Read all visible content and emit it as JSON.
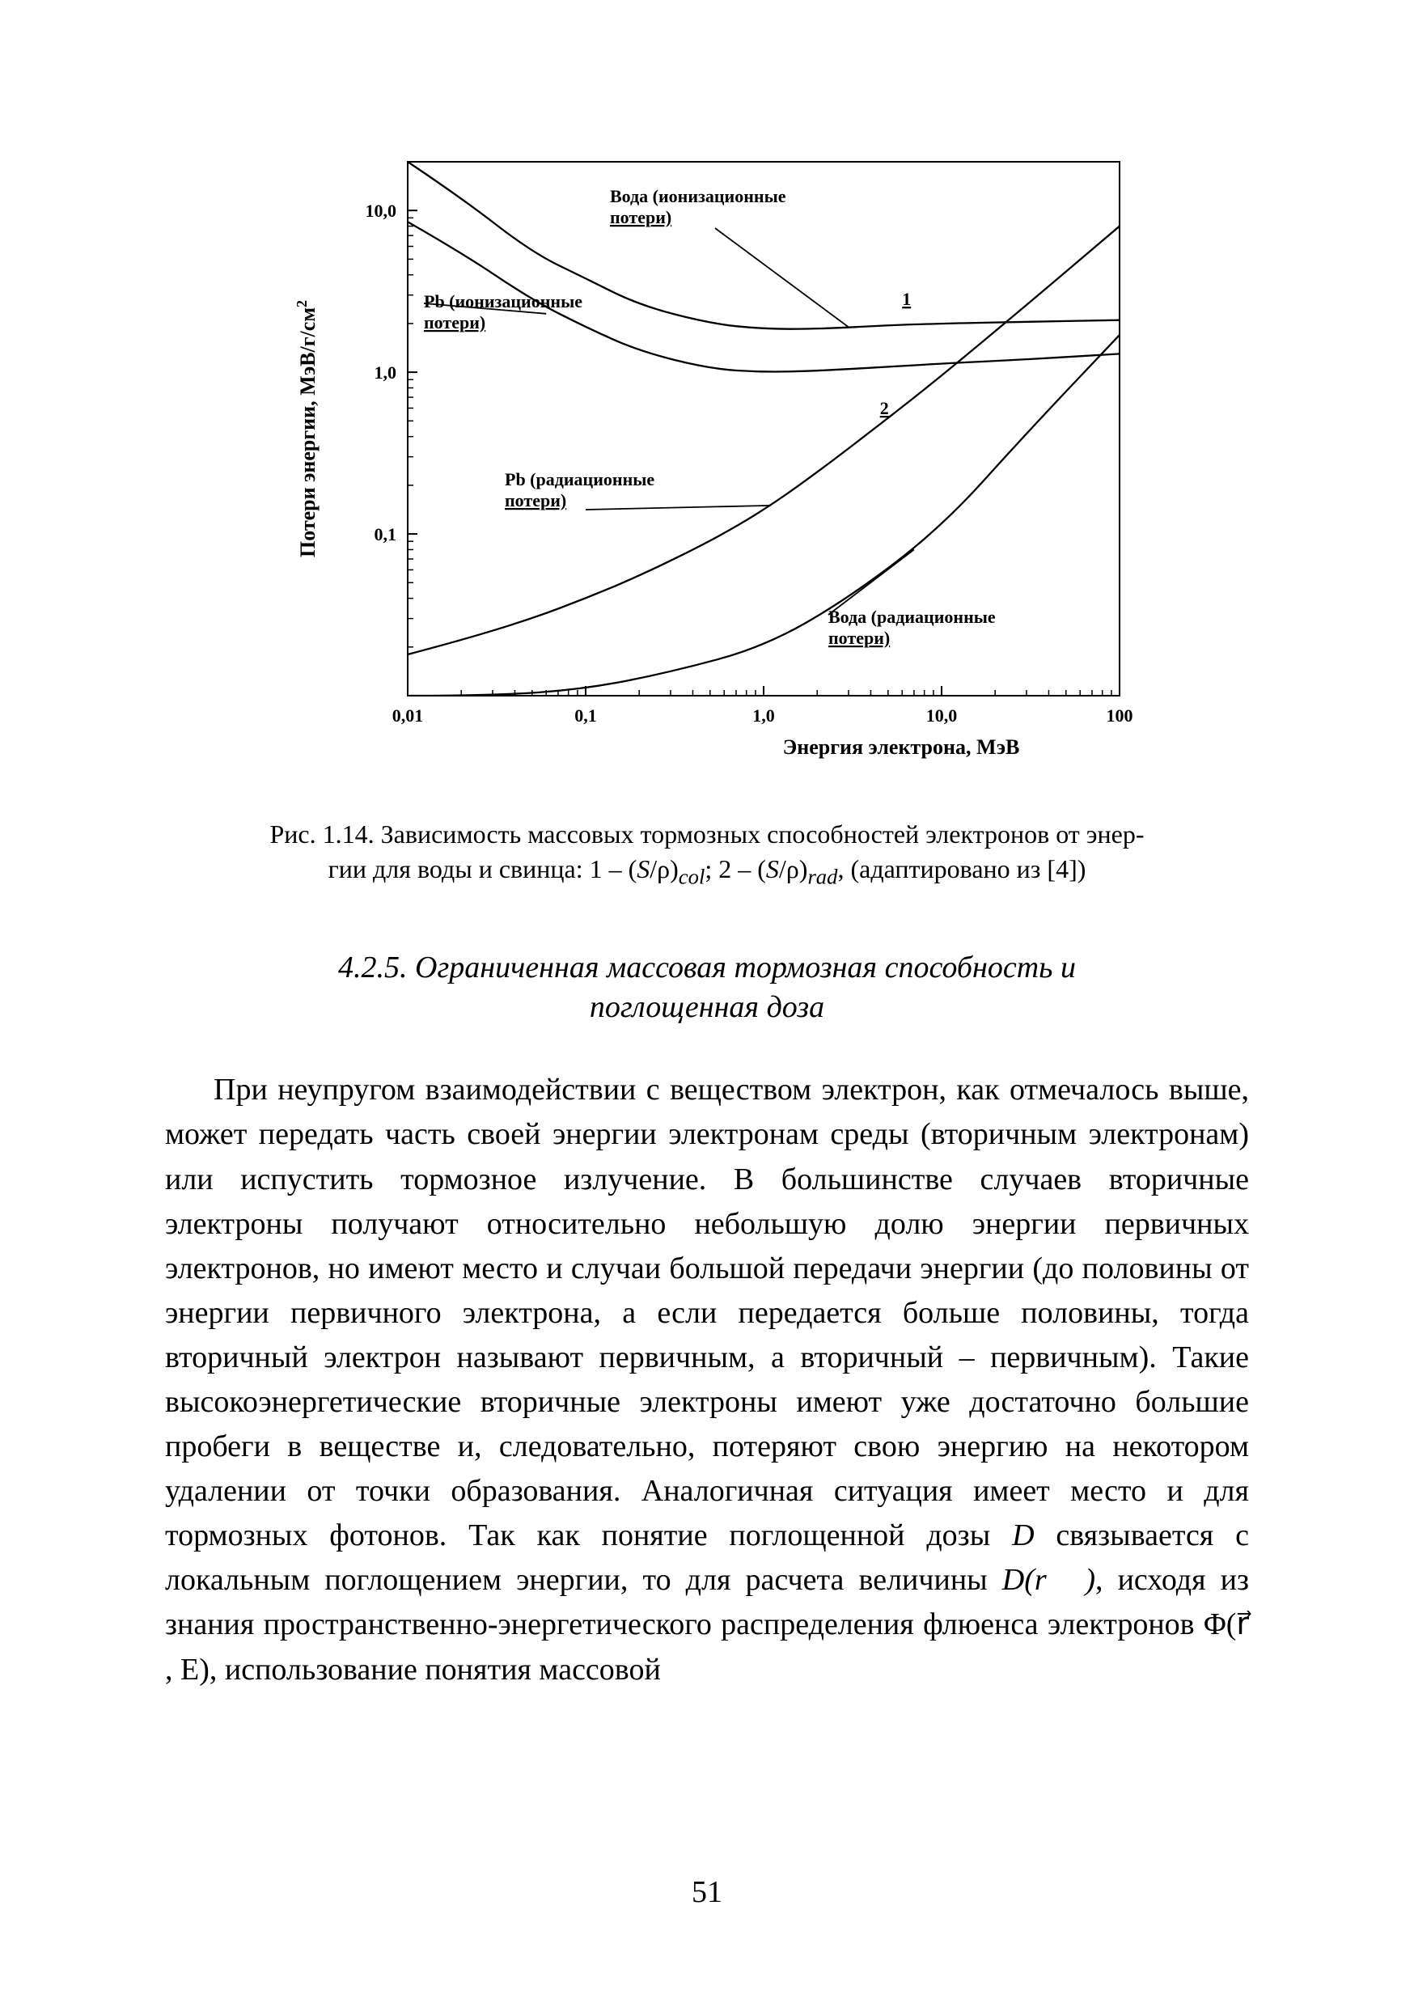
{
  "page_number": "51",
  "figure": {
    "type": "line-log-log",
    "background_color": "#ffffff",
    "axis_color": "#000000",
    "curve_color": "#000000",
    "curve_width": 2.3,
    "frame_width": 2,
    "xlabel": "Энергия электрона, МэВ",
    "ylabel": "Потери энергии, МэВ/г/см",
    "ylabel_sup": "2",
    "xticks": [
      "0,01",
      "0,1",
      "1,0",
      "10,0",
      "100"
    ],
    "yticks": [
      "0,1",
      "1,0",
      "10,0"
    ],
    "xlim": [
      0.01,
      100
    ],
    "ylim": [
      0.01,
      20
    ],
    "annotations": {
      "water_ion_1": "Вода (ионизационные",
      "water_ion_2": "потери)",
      "pb_ion_1": "Pb (ионизационные",
      "pb_ion_2": "потери)",
      "pb_rad_1": "Pb (радиационные",
      "pb_rad_2": "потери)",
      "water_rad_1": "Вода (радиационные",
      "water_rad_2": "потери)",
      "mark1": "1",
      "mark2": "2"
    },
    "series": {
      "water_ion": [
        [
          0.01,
          20
        ],
        [
          0.02,
          12
        ],
        [
          0.05,
          5.5
        ],
        [
          0.1,
          3.8
        ],
        [
          0.2,
          2.6
        ],
        [
          0.5,
          2.0
        ],
        [
          1,
          1.85
        ],
        [
          2,
          1.85
        ],
        [
          5,
          1.95
        ],
        [
          10,
          2.0
        ],
        [
          30,
          2.05
        ],
        [
          100,
          2.1
        ]
      ],
      "pb_ion": [
        [
          0.01,
          8.5
        ],
        [
          0.02,
          5.5
        ],
        [
          0.05,
          2.8
        ],
        [
          0.1,
          1.9
        ],
        [
          0.2,
          1.35
        ],
        [
          0.5,
          1.05
        ],
        [
          1,
          1.0
        ],
        [
          2,
          1.02
        ],
        [
          5,
          1.08
        ],
        [
          10,
          1.13
        ],
        [
          30,
          1.2
        ],
        [
          100,
          1.3
        ]
      ],
      "pb_rad": [
        [
          0.01,
          0.018
        ],
        [
          0.02,
          0.022
        ],
        [
          0.05,
          0.03
        ],
        [
          0.1,
          0.04
        ],
        [
          0.2,
          0.055
        ],
        [
          0.5,
          0.09
        ],
        [
          1,
          0.14
        ],
        [
          2,
          0.24
        ],
        [
          5,
          0.52
        ],
        [
          10,
          0.95
        ],
        [
          30,
          2.6
        ],
        [
          100,
          8.0
        ]
      ],
      "water_rad": [
        [
          0.01,
          0.01
        ],
        [
          0.03,
          0.01
        ],
        [
          0.1,
          0.011
        ],
        [
          0.3,
          0.014
        ],
        [
          1,
          0.02
        ],
        [
          3,
          0.04
        ],
        [
          10,
          0.11
        ],
        [
          30,
          0.42
        ],
        [
          100,
          1.7
        ]
      ]
    }
  },
  "caption": {
    "line1": "Рис. 1.14. Зависимость массовых тормозных способностей электронов от энер-",
    "line2_a": "гии для воды и свинца: 1 – (",
    "line2_sp1_i": "S",
    "line2_sp1_rho": "/ρ)",
    "line2_sub1": "col",
    "line2_b": "; 2 – (",
    "line2_sp2_i": "S",
    "line2_sp2_rho": "/ρ)",
    "line2_sub2": "rad",
    "line2_c": ", (адаптировано из [4])"
  },
  "section_title": {
    "line1": "4.2.5. Ограниченная массовая тормозная способность и",
    "line2": "поглощенная доза"
  },
  "body": {
    "p1_a": "При неупругом взаимодействии с веществом электрон, как отмечалось выше, может передать часть своей энергии электронам среды (вторичным электронам) или испустить тормозное излучение. В большинстве случаев вторичные электроны получают относительно небольшую долю энергии первичных электронов, но имеют место и случаи большой передачи энергии (до половины от энергии первичного электрона, а если передается больше половины, тогда вторичный электрон называют первичным, а вторичный – первичным). Такие высокоэнергетические вторичные электроны имеют уже достаточно большие пробеги в веществе и, следовательно, потеряют свою энергию на некотором удалении от точки образования. Аналогичная ситуация имеет место и для тормозных фотонов. Так как понятие поглощенной дозы ",
    "p1_D": "D",
    "p1_b": " связывается с локальным поглощением энергии, то для расчета величины ",
    "p1_Dr": "D(r⃗ )",
    "p1_c": ", исходя из знания пространственно-энергетического распределения флюенса электронов ",
    "p1_Phi": "Φ(r⃗ , E)",
    "p1_d": ",   использование понятия массовой"
  }
}
